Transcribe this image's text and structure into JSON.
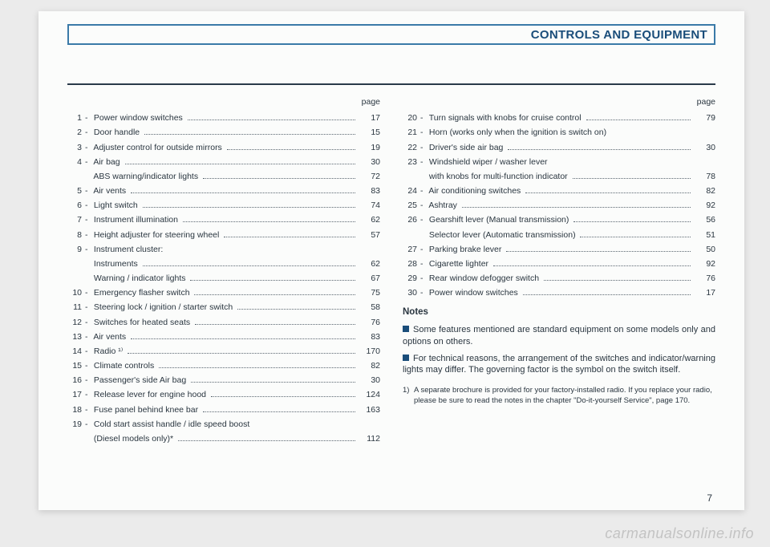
{
  "header": {
    "title": "CONTROLS AND EQUIPMENT"
  },
  "page_label": "page",
  "left": [
    {
      "n": "1",
      "label": "Power window switches",
      "p": "17"
    },
    {
      "n": "2",
      "label": "Door handle",
      "p": "15"
    },
    {
      "n": "3",
      "label": "Adjuster control for outside mirrors",
      "p": "19"
    },
    {
      "n": "4",
      "label": "Air bag",
      "p": "30"
    },
    {
      "n": "",
      "label": "ABS warning/indicator lights",
      "p": "72",
      "sub": true
    },
    {
      "n": "5",
      "label": "Air vents",
      "p": "83"
    },
    {
      "n": "6",
      "label": "Light switch",
      "p": "74"
    },
    {
      "n": "7",
      "label": "Instrument illumination",
      "p": "62"
    },
    {
      "n": "8",
      "label": "Height adjuster for steering wheel",
      "p": "57"
    },
    {
      "n": "9",
      "label": "Instrument cluster:",
      "p": "",
      "nopage": true
    },
    {
      "n": "",
      "label": "Instruments",
      "p": "62",
      "sub": true
    },
    {
      "n": "",
      "label": "Warning / indicator lights",
      "p": "67",
      "sub": true
    },
    {
      "n": "10",
      "label": "Emergency flasher switch",
      "p": "75"
    },
    {
      "n": "11",
      "label": "Steering lock / ignition / starter switch",
      "p": "58"
    },
    {
      "n": "12",
      "label": "Switches for heated seats",
      "p": "76"
    },
    {
      "n": "13",
      "label": "Air vents",
      "p": "83"
    },
    {
      "n": "14",
      "label": "Radio ¹⁾",
      "p": "170"
    },
    {
      "n": "15",
      "label": "Climate controls",
      "p": "82"
    },
    {
      "n": "16",
      "label": "Passenger's side Air bag",
      "p": "30"
    },
    {
      "n": "17",
      "label": "Release lever for engine hood",
      "p": "124"
    },
    {
      "n": "18",
      "label": "Fuse panel behind knee bar",
      "p": "163"
    },
    {
      "n": "19",
      "label": "Cold start assist handle / idle speed boost",
      "p": "",
      "nopage": true
    },
    {
      "n": "",
      "label": "(Diesel models only)*",
      "p": "112",
      "sub": true
    }
  ],
  "right": [
    {
      "n": "20",
      "label": "Turn signals with knobs for cruise control",
      "p": "79"
    },
    {
      "n": "21",
      "label": "Horn (works only when the ignition is switch on)",
      "p": "",
      "nopage": true
    },
    {
      "n": "22",
      "label": "Driver's side air bag",
      "p": "30"
    },
    {
      "n": "23",
      "label": "Windshield wiper / washer lever",
      "p": "",
      "nopage": true
    },
    {
      "n": "",
      "label": "with knobs for multi-function indicator",
      "p": "78",
      "sub": true
    },
    {
      "n": "24",
      "label": "Air conditioning switches",
      "p": "82"
    },
    {
      "n": "25",
      "label": "Ashtray",
      "p": "92"
    },
    {
      "n": "26",
      "label": "Gearshift lever (Manual transmission)",
      "p": "56"
    },
    {
      "n": "",
      "label": "Selector lever (Automatic transmission)",
      "p": "51",
      "sub": true
    },
    {
      "n": "27",
      "label": "Parking brake lever",
      "p": "50"
    },
    {
      "n": "28",
      "label": "Cigarette lighter",
      "p": "92"
    },
    {
      "n": "29",
      "label": "Rear window defogger switch",
      "p": "76"
    },
    {
      "n": "30",
      "label": "Power window switches",
      "p": "17"
    }
  ],
  "notes": {
    "title": "Notes",
    "items": [
      "Some features mentioned are standard equipment on some models only and options on others.",
      "For technical reasons, the arrangement of the switches and indicator/warning lights may differ. The governing factor is the symbol on the switch itself."
    ]
  },
  "footnote": {
    "mark": "1)",
    "text": "A separate brochure is provided for your factory-installed radio. If you replace your radio, please be sure to read the notes in the chapter \"Do-it-yourself Service\", page 170."
  },
  "page_number": "7",
  "watermark": "carmanualsonline.info"
}
